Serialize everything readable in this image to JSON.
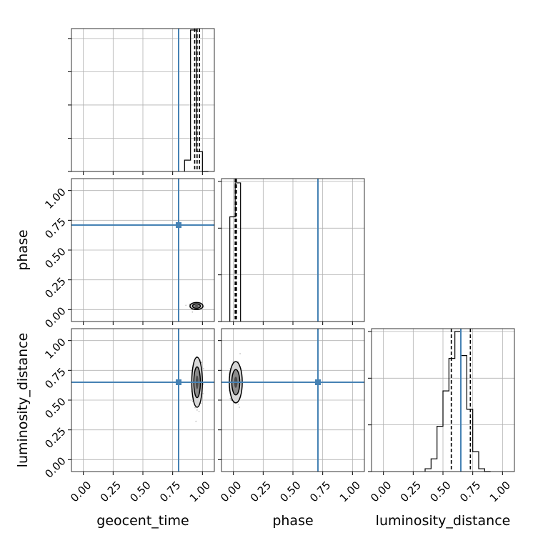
{
  "chart_data": {
    "type": "corner",
    "parameters": [
      "geocent_time",
      "phase",
      "luminosity_distance"
    ],
    "range": [
      -0.1,
      1.1
    ],
    "tick_values": [
      0.0,
      0.25,
      0.5,
      0.75,
      1.0
    ],
    "tick_labels": [
      "0.00",
      "0.25",
      "0.50",
      "0.75",
      "1.00"
    ],
    "truths": {
      "geocent_time": 0.8,
      "phase": 0.71,
      "luminosity_distance": 0.65
    },
    "truth_color": "#4682b4",
    "grid": true,
    "histograms": {
      "geocent_time": {
        "edges": [
          0.85,
          0.9,
          0.95,
          1.0,
          1.05
        ],
        "counts": [
          0.08,
          1.0,
          0.14,
          0.0
        ],
        "quantiles": [
          0.935,
          0.955,
          0.975
        ]
      },
      "phase": {
        "edges": [
          -0.03,
          0.015,
          0.06
        ],
        "counts": [
          0.74,
          0.98
        ],
        "quantiles": [
          0.015,
          0.02,
          0.025
        ]
      },
      "luminosity_distance": {
        "edges": [
          0.35,
          0.4,
          0.45,
          0.5,
          0.55,
          0.6,
          0.65,
          0.7,
          0.75,
          0.8,
          0.85,
          0.9
        ],
        "counts": [
          0.02,
          0.09,
          0.32,
          0.57,
          0.8,
          0.99,
          0.82,
          0.44,
          0.14,
          0.02,
          0.0
        ],
        "quantiles": [
          0.57,
          0.65,
          0.73
        ]
      }
    },
    "scatter_2d": [
      {
        "x": "geocent_time",
        "y": "phase",
        "center": [
          0.95,
          0.03
        ],
        "spread": [
          0.022,
          0.012
        ]
      },
      {
        "x": "geocent_time",
        "y": "luminosity_distance",
        "center": [
          0.955,
          0.65
        ],
        "spread": [
          0.018,
          0.085
        ]
      },
      {
        "x": "phase",
        "y": "luminosity_distance",
        "center": [
          0.02,
          0.65
        ],
        "spread": [
          0.022,
          0.07
        ]
      }
    ]
  }
}
